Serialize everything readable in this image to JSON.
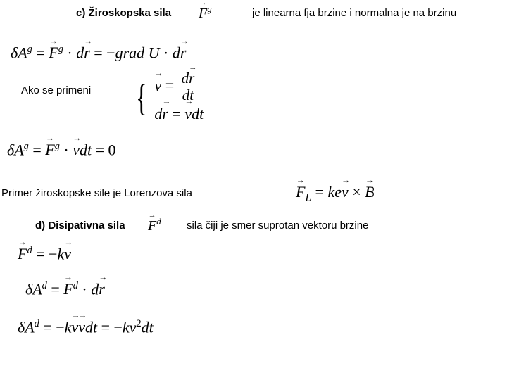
{
  "header": {
    "c_label": "c) Žiroskopska sila",
    "c_symbol_html": "<span class=\"vec\"><i>F</i></span><span class=\"sup\"><i>g</i></span>",
    "c_desc": "je linearna fja brzine i normalna je na brzinu"
  },
  "eq1_html": "<i>δA</i><span class=\"sup\"><i>g</i></span> = <span class=\"vec\"><i>F</i></span><span class=\"sup\"><i>g</i></span> · <i>d</i><span class=\"vec\"><i>r</i></span> = −<i>grad</i> <i>U</i> · <i>d</i><span class=\"vec\"><i>r</i></span>",
  "ako": "Ako se primeni",
  "eq2_top_html": "<span class=\"vec\"><i>v</i></span> = <span class=\"frac\"><span class=\"num\"><i>d</i><span class=\"vec\"><i>r</i></span></span><span class=\"den\"><i>dt</i></span></span>",
  "eq2_bot_html": "<i>d</i><span class=\"vec\"><i>r</i></span> = <span class=\"vec\"><i>v</i></span><i>dt</i>",
  "eq3_html": "<i>δA</i><span class=\"sup\"><i>g</i></span> = <span class=\"vec\"><i>F</i></span><span class=\"sup\"><i>g</i></span> · <span class=\"vec\"><i>v</i></span><i>dt</i> = 0",
  "primer": "Primer žiroskopske sile je Lorenzova sila",
  "lorentz_html": "<span class=\"vec\"><i>F</i></span><sub style=\"font-size:0.7em;font-style:italic\">L</sub> = <i>ke</i><span class=\"vec\"><i>v</i></span> × <span class=\"vec\"><i>B</i></span>",
  "d_label": "d) Disipativna sila",
  "d_symbol_html": "<span class=\"vec\"><i>F</i></span><span class=\"sup\"><i>d</i></span>",
  "d_desc": "sila čiji je smer suprotan vektoru brzine",
  "eq4_html": "<span class=\"vec\"><i>F</i></span><span class=\"sup\"><i>d</i></span> = −<i>k</i><span class=\"vec\"><i>v</i></span>",
  "eq5_html": "<i>δA</i><span class=\"sup\"><i>d</i></span> = <span class=\"vec\"><i>F</i></span><span class=\"sup\"><i>d</i></span> · <i>d</i><span class=\"vec\"><i>r</i></span>",
  "eq6_html": "<i>δA</i><span class=\"sup\"><i>d</i></span> = −<i>k</i><span class=\"vec\"><i>v</i></span><span class=\"vec\"><i>v</i></span><i>dt</i> = −<i>kv</i><span class=\"sup\">2</span><i>dt</i>"
}
